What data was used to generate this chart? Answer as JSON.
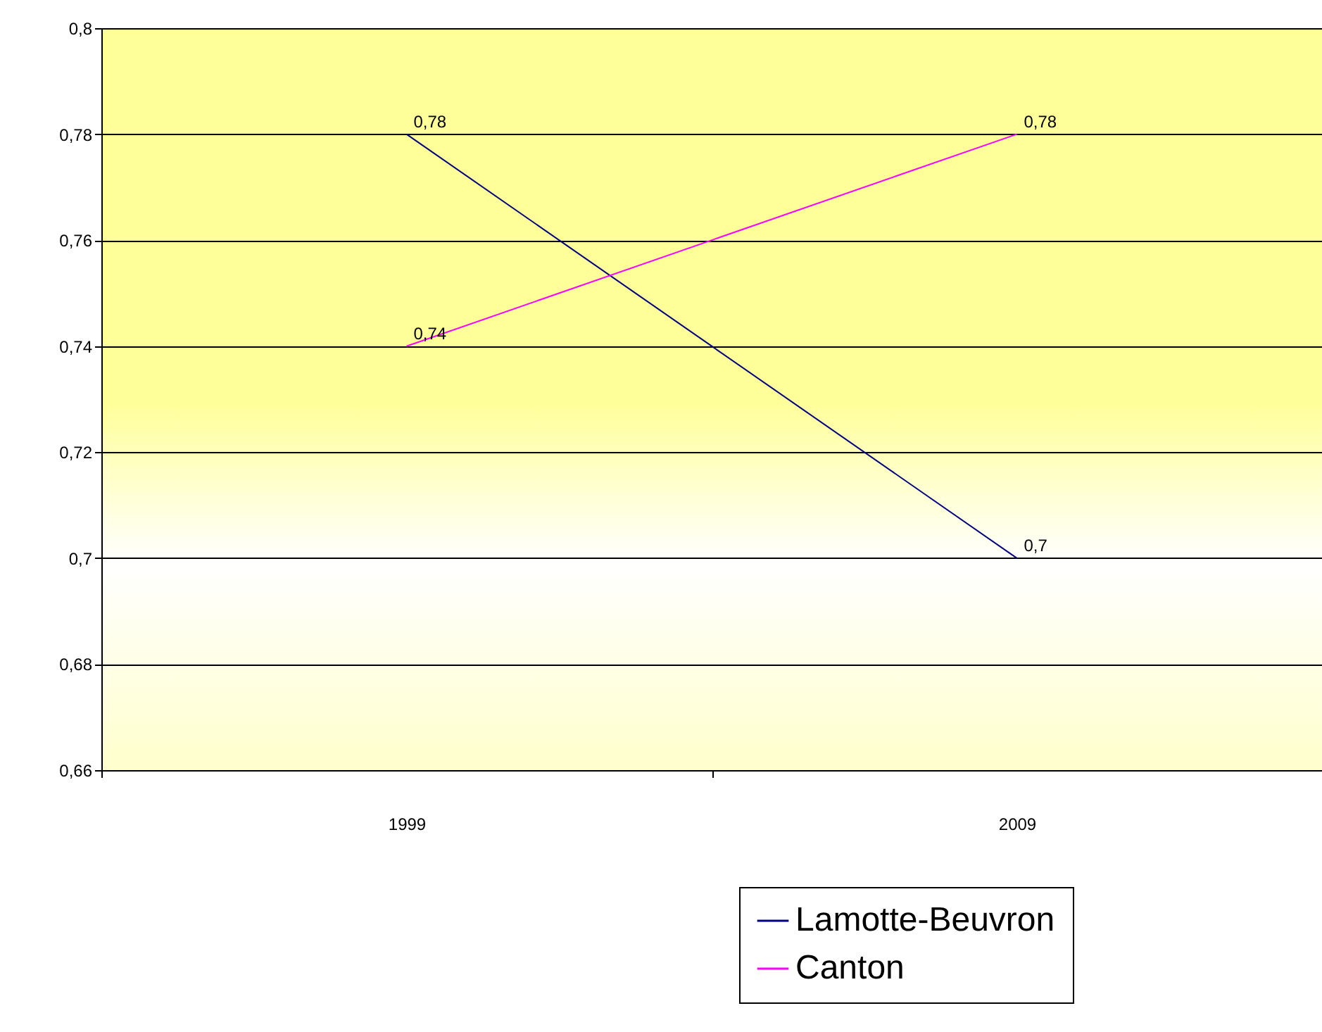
{
  "chart_data": {
    "type": "line",
    "categories": [
      "1999",
      "2009"
    ],
    "series": [
      {
        "name": "Lamotte-Beuvron",
        "color": "#000080",
        "values": [
          0.78,
          0.7
        ],
        "value_labels": [
          "0,78",
          "0,7"
        ]
      },
      {
        "name": "Canton",
        "color": "#ff00ff",
        "values": [
          0.74,
          0.78
        ],
        "value_labels": [
          "0,74",
          "0,78"
        ]
      }
    ],
    "ylim": [
      0.66,
      0.8
    ],
    "yticks": [
      {
        "value": 0.66,
        "label": "0,66"
      },
      {
        "value": 0.68,
        "label": "0,68"
      },
      {
        "value": 0.7,
        "label": "0,7"
      },
      {
        "value": 0.72,
        "label": "0,72"
      },
      {
        "value": 0.74,
        "label": "0,74"
      },
      {
        "value": 0.76,
        "label": "0,76"
      },
      {
        "value": 0.78,
        "label": "0,78"
      },
      {
        "value": 0.8,
        "label": "0,8"
      }
    ],
    "grid": "y",
    "legend": "bottom",
    "marker": "none",
    "line_style": "solid"
  }
}
